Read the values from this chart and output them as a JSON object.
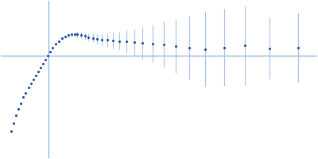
{
  "title": "",
  "bg_color": "#ffffff",
  "point_color": "#1f4e9e",
  "error_color": "#a8c0e8",
  "axis_color": "#7aa8d8",
  "figsize": [
    4.0,
    2.0
  ],
  "dpi": 100,
  "x": [
    0.012,
    0.016,
    0.02,
    0.024,
    0.028,
    0.032,
    0.036,
    0.04,
    0.044,
    0.048,
    0.052,
    0.056,
    0.06,
    0.064,
    0.068,
    0.072,
    0.076,
    0.08,
    0.085,
    0.09,
    0.095,
    0.1,
    0.105,
    0.11,
    0.115,
    0.12,
    0.126,
    0.132,
    0.138,
    0.145,
    0.152,
    0.16,
    0.168,
    0.178,
    0.188,
    0.2,
    0.212,
    0.226,
    0.242,
    0.26,
    0.28,
    0.302,
    0.328,
    0.358,
    0.392,
    0.432,
    0.478
  ],
  "y": [
    -0.38,
    -0.34,
    -0.3,
    -0.27,
    -0.24,
    -0.21,
    -0.19,
    -0.16,
    -0.14,
    -0.12,
    -0.1,
    -0.08,
    -0.06,
    -0.04,
    -0.02,
    0.0,
    0.02,
    0.04,
    0.06,
    0.075,
    0.088,
    0.098,
    0.105,
    0.108,
    0.11,
    0.108,
    0.105,
    0.1,
    0.095,
    0.09,
    0.085,
    0.082,
    0.08,
    0.078,
    0.075,
    0.072,
    0.068,
    0.065,
    0.062,
    0.058,
    0.05,
    0.042,
    0.035,
    0.042,
    0.052,
    0.038,
    0.042
  ],
  "yerr": [
    0.003,
    0.003,
    0.003,
    0.003,
    0.003,
    0.003,
    0.003,
    0.003,
    0.003,
    0.003,
    0.004,
    0.004,
    0.004,
    0.004,
    0.004,
    0.005,
    0.005,
    0.006,
    0.006,
    0.007,
    0.008,
    0.009,
    0.01,
    0.011,
    0.012,
    0.013,
    0.015,
    0.017,
    0.019,
    0.022,
    0.025,
    0.029,
    0.034,
    0.04,
    0.047,
    0.056,
    0.067,
    0.08,
    0.095,
    0.115,
    0.138,
    0.162,
    0.19,
    0.195,
    0.2,
    0.155,
    0.175
  ],
  "xlim": [
    -0.005,
    0.51
  ],
  "ylim": [
    -0.52,
    0.28
  ],
  "hline_y": 0.0,
  "vline_x": 0.073,
  "spine_visible": false
}
